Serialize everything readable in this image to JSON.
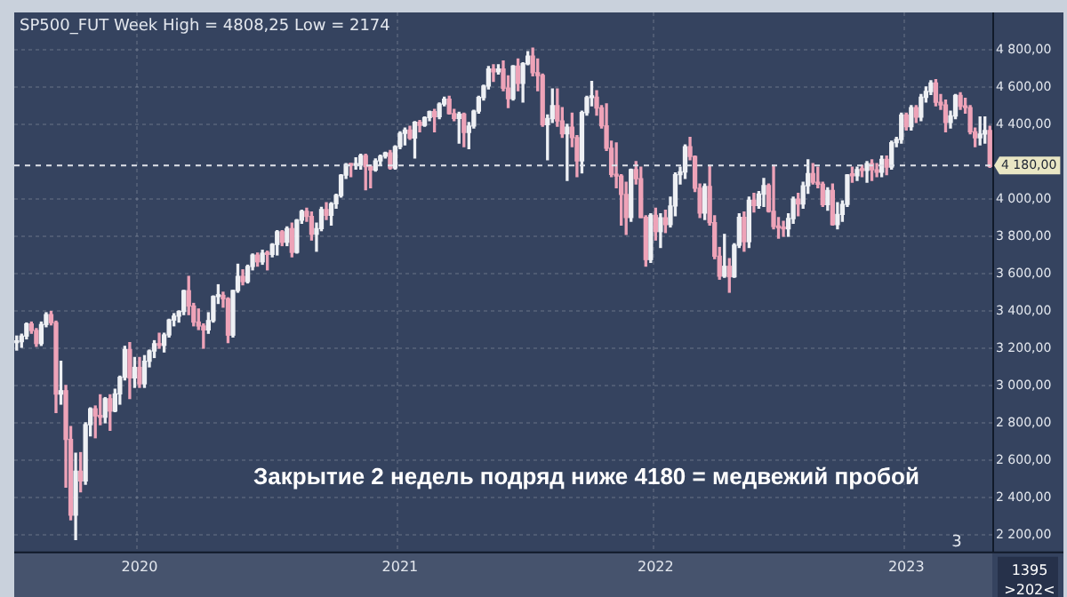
{
  "chart_data": {
    "type": "candlestick",
    "title": "SP500_FUT Week High = 4808,25 Low = 2174",
    "annotations": [
      "Закрытие 2 недель подряд ниже 4180 = медвежий пробой",
      "3",
      "1395",
      ">202<"
    ],
    "categories": [
      null,
      null,
      null,
      null,
      null,
      null,
      null,
      null,
      null,
      null,
      null,
      null,
      null,
      null,
      null,
      null,
      null,
      null,
      null,
      null,
      null,
      null,
      null,
      null,
      null,
      "2020",
      null,
      null,
      null,
      null,
      null,
      null,
      null,
      null,
      null,
      null,
      null,
      null,
      null,
      null,
      null,
      null,
      null,
      null,
      null,
      null,
      null,
      null,
      null,
      null,
      null,
      null,
      null,
      null,
      null,
      null,
      null,
      null,
      null,
      null,
      null,
      null,
      null,
      null,
      null,
      null,
      null,
      null,
      null,
      null,
      null,
      null,
      null,
      null,
      null,
      null,
      null,
      null,
      "2021",
      null,
      null,
      null,
      null,
      null,
      null,
      null,
      null,
      null,
      null,
      null,
      null,
      null,
      null,
      null,
      null,
      null,
      null,
      null,
      null,
      null,
      null,
      null,
      null,
      null,
      null,
      null,
      null,
      null,
      null,
      null,
      null,
      null,
      null,
      null,
      null,
      null,
      null,
      null,
      null,
      null,
      null,
      null,
      null,
      null,
      null,
      null,
      null,
      null,
      null,
      null,
      "2022",
      null,
      null,
      null,
      null,
      null,
      null,
      null,
      null,
      null,
      null,
      null,
      null,
      null,
      null,
      null,
      null,
      null,
      null,
      null,
      null,
      null,
      null,
      null,
      null,
      null,
      null,
      null,
      null,
      null,
      null,
      null,
      null,
      null,
      null,
      null,
      null,
      null,
      null,
      null,
      null,
      null,
      null,
      null,
      null,
      null,
      null,
      null,
      null,
      null,
      null,
      "2023",
      null,
      null,
      null,
      null,
      null,
      null,
      null,
      null,
      null,
      null,
      null,
      null,
      null,
      null,
      null,
      null,
      null
    ],
    "ohlc": [
      [
        3230,
        3265,
        3190,
        3235
      ],
      [
        3235,
        3275,
        3205,
        3265
      ],
      [
        3265,
        3335,
        3250,
        3330
      ],
      [
        3330,
        3340,
        3280,
        3295
      ],
      [
        3295,
        3305,
        3210,
        3225
      ],
      [
        3225,
        3340,
        3215,
        3327
      ],
      [
        3327,
        3390,
        3315,
        3380
      ],
      [
        3380,
        3397,
        3325,
        3337
      ],
      [
        3337,
        3345,
        2855,
        2954
      ],
      [
        2954,
        3130,
        2900,
        2972
      ],
      [
        2972,
        3000,
        2455,
        2711
      ],
      [
        2711,
        2780,
        2280,
        2305
      ],
      [
        2305,
        2637,
        2174,
        2541
      ],
      [
        2541,
        2640,
        2430,
        2489
      ],
      [
        2489,
        2800,
        2470,
        2790
      ],
      [
        2790,
        2880,
        2730,
        2875
      ],
      [
        2875,
        2890,
        2720,
        2837
      ],
      [
        2837,
        2950,
        2790,
        2830
      ],
      [
        2830,
        2935,
        2800,
        2929
      ],
      [
        2929,
        2950,
        2760,
        2863
      ],
      [
        2863,
        2980,
        2860,
        2955
      ],
      [
        2955,
        3050,
        2900,
        3044
      ],
      [
        3044,
        3210,
        3030,
        3193
      ],
      [
        3193,
        3230,
        2930,
        3041
      ],
      [
        3041,
        3150,
        2990,
        3097
      ],
      [
        3097,
        3150,
        2990,
        3009
      ],
      [
        3009,
        3160,
        2990,
        3130
      ],
      [
        3130,
        3190,
        3100,
        3185
      ],
      [
        3185,
        3240,
        3150,
        3224
      ],
      [
        3224,
        3280,
        3200,
        3215
      ],
      [
        3215,
        3280,
        3180,
        3271
      ],
      [
        3271,
        3355,
        3260,
        3351
      ],
      [
        3351,
        3385,
        3320,
        3372
      ],
      [
        3372,
        3400,
        3340,
        3397
      ],
      [
        3397,
        3510,
        3380,
        3508
      ],
      [
        3508,
        3585,
        3380,
        3426
      ],
      [
        3426,
        3440,
        3320,
        3340
      ],
      [
        3340,
        3410,
        3300,
        3319
      ],
      [
        3319,
        3330,
        3200,
        3298
      ],
      [
        3298,
        3390,
        3280,
        3348
      ],
      [
        3348,
        3480,
        3340,
        3477
      ],
      [
        3477,
        3540,
        3440,
        3483
      ],
      [
        3483,
        3500,
        3420,
        3465
      ],
      [
        3465,
        3470,
        3230,
        3270
      ],
      [
        3270,
        3510,
        3260,
        3509
      ],
      [
        3509,
        3650,
        3500,
        3585
      ],
      [
        3585,
        3620,
        3540,
        3557
      ],
      [
        3557,
        3645,
        3550,
        3638
      ],
      [
        3638,
        3705,
        3620,
        3699
      ],
      [
        3699,
        3710,
        3640,
        3663
      ],
      [
        3663,
        3725,
        3650,
        3709
      ],
      [
        3709,
        3720,
        3620,
        3703
      ],
      [
        3703,
        3760,
        3690,
        3756
      ],
      [
        3756,
        3830,
        3700,
        3824
      ],
      [
        3824,
        3830,
        3750,
        3768
      ],
      [
        3768,
        3850,
        3750,
        3841
      ],
      [
        3841,
        3870,
        3690,
        3714
      ],
      [
        3714,
        3890,
        3710,
        3886
      ],
      [
        3886,
        3940,
        3870,
        3934
      ],
      [
        3934,
        3950,
        3880,
        3906
      ],
      [
        3906,
        3930,
        3780,
        3811
      ],
      [
        3811,
        3870,
        3720,
        3841
      ],
      [
        3841,
        3955,
        3830,
        3943
      ],
      [
        3943,
        3980,
        3890,
        3913
      ],
      [
        3913,
        3980,
        3860,
        3974
      ],
      [
        3974,
        4025,
        3950,
        4019
      ],
      [
        4019,
        4130,
        4010,
        4128
      ],
      [
        4128,
        4190,
        4110,
        4185
      ],
      [
        4185,
        4190,
        4120,
        4180
      ],
      [
        4180,
        4220,
        4160,
        4181
      ],
      [
        4181,
        4240,
        4160,
        4232
      ],
      [
        4232,
        4240,
        4050,
        4173
      ],
      [
        4173,
        4180,
        4060,
        4155
      ],
      [
        4155,
        4215,
        4150,
        4204
      ],
      [
        4204,
        4235,
        4180,
        4229
      ],
      [
        4229,
        4250,
        4220,
        4247
      ],
      [
        4247,
        4260,
        4160,
        4166
      ],
      [
        4166,
        4285,
        4160,
        4280
      ],
      [
        4280,
        4360,
        4270,
        4352
      ],
      [
        4352,
        4380,
        4290,
        4369
      ],
      [
        4369,
        4390,
        4320,
        4327
      ],
      [
        4327,
        4415,
        4220,
        4411
      ],
      [
        4411,
        4420,
        4360,
        4395
      ],
      [
        4395,
        4440,
        4390,
        4436
      ],
      [
        4436,
        4470,
        4420,
        4468
      ],
      [
        4468,
        4480,
        4360,
        4441
      ],
      [
        4441,
        4515,
        4430,
        4509
      ],
      [
        4509,
        4545,
        4500,
        4535
      ],
      [
        4535,
        4550,
        4455,
        4458
      ],
      [
        4458,
        4480,
        4420,
        4432
      ],
      [
        4432,
        4465,
        4300,
        4455
      ],
      [
        4455,
        4460,
        4280,
        4357
      ],
      [
        4357,
        4410,
        4270,
        4391
      ],
      [
        4391,
        4475,
        4380,
        4471
      ],
      [
        4471,
        4550,
        4460,
        4544
      ],
      [
        4544,
        4610,
        4530,
        4605
      ],
      [
        4605,
        4710,
        4590,
        4697
      ],
      [
        4697,
        4720,
        4630,
        4682
      ],
      [
        4682,
        4720,
        4670,
        4697
      ],
      [
        4697,
        4740,
        4580,
        4594
      ],
      [
        4594,
        4660,
        4490,
        4538
      ],
      [
        4538,
        4715,
        4530,
        4712
      ],
      [
        4712,
        4750,
        4580,
        4620
      ],
      [
        4620,
        4730,
        4520,
        4725
      ],
      [
        4725,
        4790,
        4720,
        4766
      ],
      [
        4766,
        4808.25,
        4660,
        4677
      ],
      [
        4677,
        4750,
        4580,
        4662
      ],
      [
        4662,
        4670,
        4390,
        4398
      ],
      [
        4398,
        4450,
        4210,
        4431
      ],
      [
        4431,
        4590,
        4410,
        4500
      ],
      [
        4500,
        4590,
        4390,
        4418
      ],
      [
        4418,
        4490,
        4330,
        4349
      ],
      [
        4349,
        4400,
        4100,
        4385
      ],
      [
        4385,
        4460,
        4280,
        4329
      ],
      [
        4329,
        4340,
        4120,
        4204
      ],
      [
        4204,
        4470,
        4140,
        4463
      ],
      [
        4463,
        4550,
        4450,
        4543
      ],
      [
        4543,
        4630,
        4500,
        4545
      ],
      [
        4545,
        4580,
        4450,
        4488
      ],
      [
        4488,
        4500,
        4380,
        4392
      ],
      [
        4392,
        4510,
        4260,
        4272
      ],
      [
        4272,
        4310,
        4120,
        4132
      ],
      [
        4132,
        4300,
        4060,
        4123
      ],
      [
        4123,
        4130,
        3860,
        4024
      ],
      [
        4024,
        4090,
        3810,
        3901
      ],
      [
        3901,
        4160,
        3880,
        4158
      ],
      [
        4158,
        4200,
        4080,
        4109
      ],
      [
        4109,
        4170,
        3900,
        3901
      ],
      [
        3901,
        3910,
        3640,
        3675
      ],
      [
        3675,
        3920,
        3660,
        3912
      ],
      [
        3912,
        3950,
        3780,
        3825
      ],
      [
        3825,
        3920,
        3740,
        3899
      ],
      [
        3899,
        3940,
        3820,
        3863
      ],
      [
        3863,
        4010,
        3850,
        3962
      ],
      [
        3962,
        4140,
        3910,
        4130
      ],
      [
        4130,
        4170,
        4080,
        4145
      ],
      [
        4145,
        4290,
        4110,
        4280
      ],
      [
        4280,
        4330,
        4210,
        4228
      ],
      [
        4228,
        4230,
        4040,
        4058
      ],
      [
        4058,
        4080,
        3900,
        3924
      ],
      [
        3924,
        4080,
        3890,
        4067
      ],
      [
        4067,
        4180,
        3860,
        3873
      ],
      [
        3873,
        3910,
        3680,
        3693
      ],
      [
        3693,
        3740,
        3570,
        3586
      ],
      [
        3586,
        3810,
        3580,
        3639
      ],
      [
        3639,
        3680,
        3500,
        3583
      ],
      [
        3583,
        3760,
        3580,
        3752
      ],
      [
        3752,
        3920,
        3740,
        3901
      ],
      [
        3901,
        3930,
        3720,
        3771
      ],
      [
        3771,
        4010,
        3740,
        3993
      ],
      [
        3993,
        4030,
        3930,
        3965
      ],
      [
        3965,
        4040,
        3950,
        4026
      ],
      [
        4026,
        4110,
        3960,
        4072
      ],
      [
        4072,
        4080,
        3930,
        3934
      ],
      [
        3934,
        4180,
        3840,
        3852
      ],
      [
        3852,
        3900,
        3790,
        3845
      ],
      [
        3845,
        3880,
        3800,
        3840
      ],
      [
        3840,
        3920,
        3800,
        3895
      ],
      [
        3895,
        4010,
        3870,
        3999
      ],
      [
        3999,
        4030,
        3910,
        3973
      ],
      [
        3973,
        4090,
        3950,
        4071
      ],
      [
        4071,
        4210,
        4030,
        4136
      ],
      [
        4136,
        4190,
        4080,
        4090
      ],
      [
        4090,
        4170,
        4060,
        4079
      ],
      [
        4079,
        4090,
        3960,
        3970
      ],
      [
        3970,
        4060,
        3940,
        4046
      ],
      [
        4046,
        4080,
        3860,
        3862
      ],
      [
        3862,
        3980,
        3840,
        3917
      ],
      [
        3917,
        3990,
        3880,
        3971
      ],
      [
        3971,
        4130,
        3960,
        4129
      ],
      [
        4129,
        4170,
        4090,
        4125
      ],
      [
        4125,
        4170,
        4100,
        4158
      ],
      [
        4158,
        4180,
        4120,
        4153
      ],
      [
        4153,
        4200,
        4090,
        4189
      ],
      [
        4189,
        4210,
        4100,
        4156
      ],
      [
        4156,
        4190,
        4120,
        4144
      ],
      [
        4144,
        4230,
        4120,
        4212
      ],
      [
        4212,
        4230,
        4130,
        4171
      ],
      [
        4171,
        4310,
        4160,
        4302
      ],
      [
        4302,
        4330,
        4280,
        4319
      ],
      [
        4319,
        4460,
        4300,
        4450
      ],
      [
        4450,
        4460,
        4370,
        4388
      ],
      [
        4388,
        4500,
        4370,
        4490
      ],
      [
        4490,
        4500,
        4410,
        4439
      ],
      [
        4439,
        4560,
        4420,
        4545
      ],
      [
        4545,
        4600,
        4520,
        4576
      ],
      [
        4576,
        4634,
        4560,
        4622
      ],
      [
        4622,
        4640,
        4500,
        4518
      ],
      [
        4518,
        4560,
        4480,
        4504
      ],
      [
        4504,
        4530,
        4360,
        4410
      ],
      [
        4410,
        4470,
        4380,
        4445
      ],
      [
        4445,
        4560,
        4430,
        4555
      ],
      [
        4555,
        4570,
        4480,
        4497
      ],
      [
        4497,
        4540,
        4460,
        4490
      ],
      [
        4490,
        4500,
        4350,
        4360
      ],
      [
        4360,
        4380,
        4280,
        4328
      ],
      [
        4328,
        4440,
        4290,
        4348
      ],
      [
        4348,
        4440,
        4300,
        4367
      ],
      [
        4367,
        4390,
        4170,
        4175
      ]
    ],
    "ylim": [
      2110,
      5000
    ],
    "yticks": [
      {
        "value": 2200,
        "label": "2 200,00"
      },
      {
        "value": 2400,
        "label": "2 400,00"
      },
      {
        "value": 2600,
        "label": "2 600,00"
      },
      {
        "value": 2800,
        "label": "2 800,00"
      },
      {
        "value": 3000,
        "label": "3 000,00"
      },
      {
        "value": 3200,
        "label": "3 200,00"
      },
      {
        "value": 3400,
        "label": "3 400,00"
      },
      {
        "value": 3600,
        "label": "3 600,00"
      },
      {
        "value": 3800,
        "label": "3 800,00"
      },
      {
        "value": 4000,
        "label": "4 000,00"
      },
      {
        "value": 4400,
        "label": "4 400,00"
      },
      {
        "value": 4600,
        "label": "4 600,00"
      },
      {
        "value": 4800,
        "label": "4 800,00"
      }
    ],
    "ref_lines": [
      {
        "axis": "y",
        "value": 4180,
        "label": "4 180,00",
        "color": "#dfe3ea",
        "line_style": "dashed"
      }
    ],
    "grid": true,
    "legend": false
  }
}
